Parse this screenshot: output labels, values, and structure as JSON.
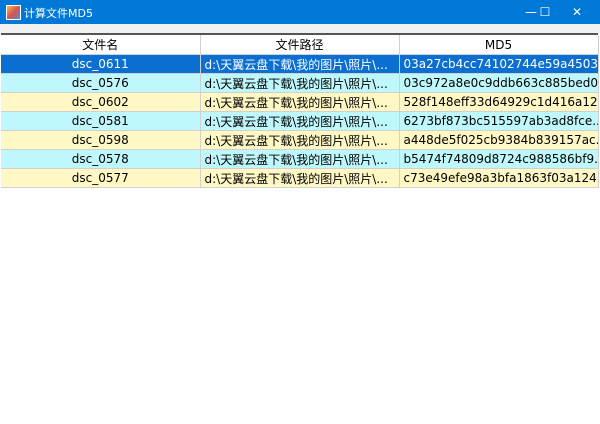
{
  "window": {
    "title": "计算文件MD5",
    "minimize": "—",
    "maximize": "☐",
    "close": "✕"
  },
  "table": {
    "columns": [
      "文件名",
      "文件路径",
      "MD5"
    ],
    "rows": [
      {
        "name": "dsc_0611",
        "path": "d:\\天翼云盘下载\\我的图片\\照片\\...",
        "md5": "03a27cb4cc74102744e59a4503...",
        "style": "sel"
      },
      {
        "name": "dsc_0576",
        "path": "d:\\天翼云盘下载\\我的图片\\照片\\...",
        "md5": "03c972a8e0c9ddb663c885bed0...",
        "style": "cy"
      },
      {
        "name": "dsc_0602",
        "path": "d:\\天翼云盘下载\\我的图片\\照片\\...",
        "md5": "528f148eff33d64929c1d416a12...",
        "style": "ye"
      },
      {
        "name": "dsc_0581",
        "path": "d:\\天翼云盘下载\\我的图片\\照片\\...",
        "md5": "6273bf873bc515597ab3ad8fce...",
        "style": "cy"
      },
      {
        "name": "dsc_0598",
        "path": "d:\\天翼云盘下载\\我的图片\\照片\\...",
        "md5": "a448de5f025cb9384b839157ac...",
        "style": "ye"
      },
      {
        "name": "dsc_0578",
        "path": "d:\\天翼云盘下载\\我的图片\\照片\\...",
        "md5": "b5474f74809d8724c988586bf9...",
        "style": "cy"
      },
      {
        "name": "dsc_0577",
        "path": "d:\\天翼云盘下载\\我的图片\\照片\\...",
        "md5": "c73e49efe98a3bfa1863f03a124...",
        "style": "ye"
      }
    ]
  },
  "colors": {
    "titlebar": "#0078d7",
    "selected": "#0a6fd0",
    "cyan": "#bff8fc",
    "yellow": "#fff8c4"
  }
}
